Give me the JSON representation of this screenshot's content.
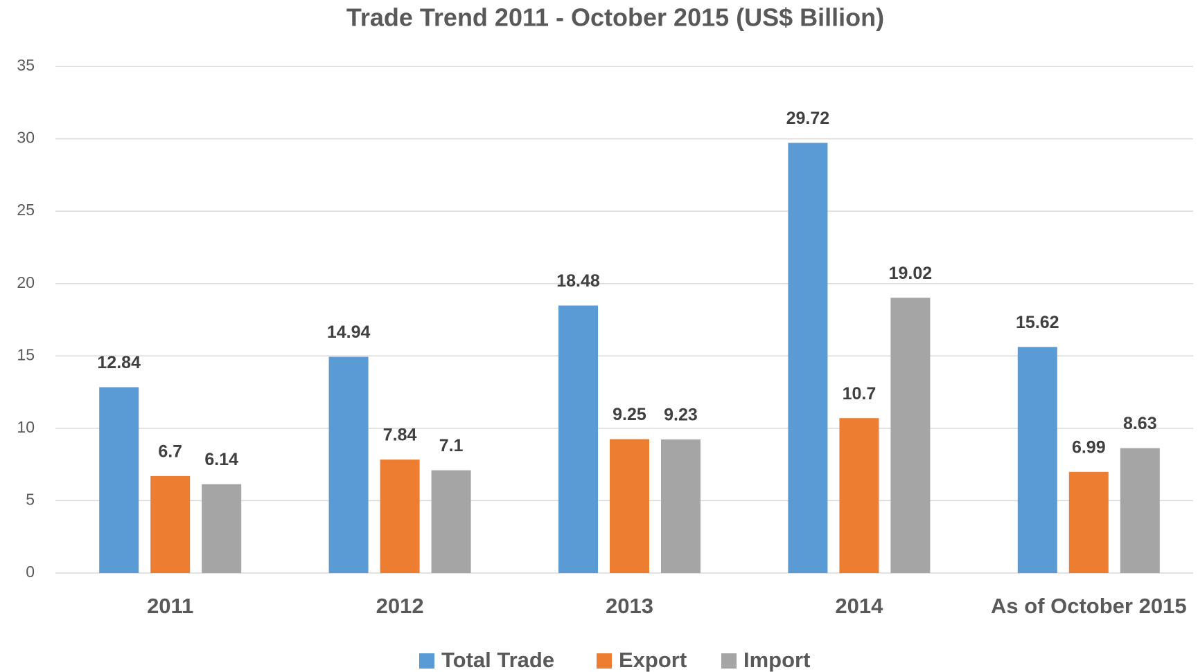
{
  "chart_data": {
    "type": "bar",
    "title": "Trade Trend 2011 - October 2015 (US$ Billion)",
    "categories": [
      "2011",
      "2012",
      "2013",
      "2014",
      "As of October 2015"
    ],
    "series": [
      {
        "name": "Total Trade",
        "color": "#5b9bd5",
        "values": [
          12.84,
          14.94,
          18.48,
          29.72,
          15.62
        ]
      },
      {
        "name": "Export",
        "color": "#ed7d31",
        "values": [
          6.7,
          7.84,
          9.25,
          10.7,
          6.99
        ]
      },
      {
        "name": "Import",
        "color": "#a5a5a5",
        "values": [
          6.14,
          7.1,
          9.23,
          19.02,
          8.63
        ]
      }
    ],
    "ylim": [
      0,
      35
    ],
    "yticks": [
      0,
      5,
      10,
      15,
      20,
      25,
      30,
      35
    ],
    "grid": true,
    "legend": "bottom"
  }
}
